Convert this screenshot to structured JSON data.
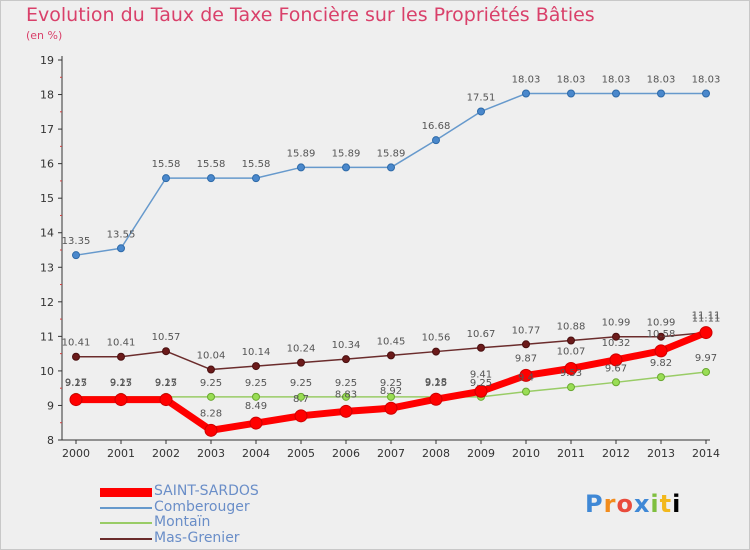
{
  "title": "Evolution du Taux de Taxe Foncière sur les Propriétés Bâties",
  "subtitle": "(en %)",
  "logo": [
    "P",
    "r",
    "o",
    "x",
    "i",
    "t",
    "i"
  ],
  "chart_data": {
    "type": "line",
    "title": "Evolution du Taux de Taxe Foncière sur les Propriétés Bâties",
    "ylabel": "(en %)",
    "xlabel": "",
    "x": [
      "2000",
      "2001",
      "2002",
      "2003",
      "2004",
      "2005",
      "2006",
      "2007",
      "2008",
      "2009",
      "2010",
      "2011",
      "2012",
      "2013",
      "2014"
    ],
    "ylim": [
      8,
      19
    ],
    "yticks": [
      "8",
      "9",
      "10",
      "11",
      "12",
      "13",
      "14",
      "15",
      "16",
      "17",
      "18",
      "19"
    ],
    "grid": false,
    "legend_position": "bottom-left",
    "series": [
      {
        "name": "SAINT-SARDOS",
        "color": "#ff0000",
        "values": [
          9.17,
          9.17,
          9.17,
          8.28,
          8.49,
          8.7,
          8.83,
          8.92,
          9.18,
          9.41,
          9.87,
          10.07,
          10.32,
          10.58,
          11.11
        ],
        "labels": [
          "9.17",
          "9.17",
          "9.17",
          "8.28",
          "8.49",
          "8.7",
          "8.83",
          "8.92",
          "9.18",
          "9.41",
          "9.87",
          "10.07",
          "10.32",
          "10.58",
          "11.11"
        ]
      },
      {
        "name": "Comberouger",
        "color": "#6699cc",
        "values": [
          13.35,
          13.55,
          15.58,
          15.58,
          15.58,
          15.89,
          15.89,
          15.89,
          16.68,
          17.51,
          18.03,
          18.03,
          18.03,
          18.03,
          18.03
        ],
        "labels": [
          "13.35",
          "13.55",
          "15.58",
          "15.58",
          "15.58",
          "15.89",
          "15.89",
          "15.89",
          "16.68",
          "17.51",
          "18.03",
          "18.03",
          "18.03",
          "18.03",
          "18.03"
        ]
      },
      {
        "name": "Montaïn",
        "color": "#99cc66",
        "values": [
          9.25,
          9.25,
          9.25,
          9.25,
          9.25,
          9.25,
          9.25,
          9.25,
          9.25,
          9.25,
          9.4,
          9.53,
          9.67,
          9.82,
          9.97
        ],
        "labels": [
          "9.25",
          "9.25",
          "9.25",
          "9.25",
          "9.25",
          "9.25",
          "9.25",
          "9.25",
          "9.25",
          "9.25",
          "9.4",
          "9.53",
          "9.67",
          "9.82",
          "9.97"
        ]
      },
      {
        "name": "Mas-Grenier",
        "color": "#6b2c2c",
        "values": [
          10.41,
          10.41,
          10.57,
          10.04,
          10.14,
          10.24,
          10.34,
          10.45,
          10.56,
          10.67,
          10.77,
          10.88,
          10.99,
          10.99,
          11.11
        ],
        "labels": [
          "10.41",
          "10.41",
          "10.57",
          "10.04",
          "10.14",
          "10.24",
          "10.34",
          "10.45",
          "10.56",
          "10.67",
          "10.77",
          "10.88",
          "10.99",
          "10.99",
          "11.11"
        ]
      }
    ]
  }
}
